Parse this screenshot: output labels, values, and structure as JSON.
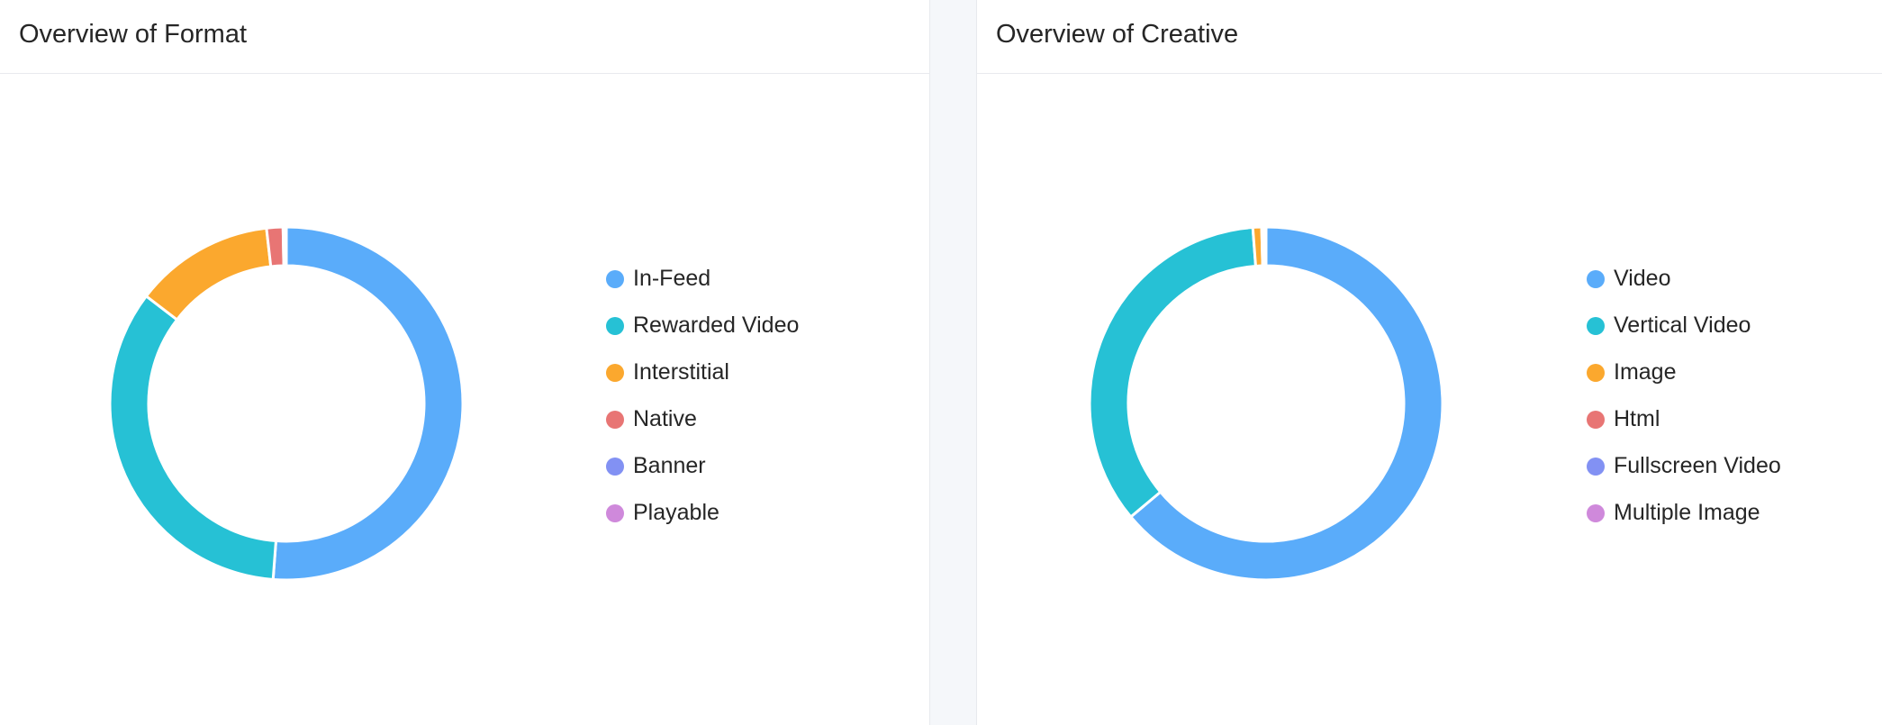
{
  "panels": {
    "format": {
      "title": "Overview of Format"
    },
    "creative": {
      "title": "Overview of Creative"
    }
  },
  "chart_data": [
    {
      "type": "pie",
      "title": "Overview of Format",
      "donut": true,
      "legend_position": "right",
      "categories": [
        "In-Feed",
        "Rewarded Video",
        "Interstitial",
        "Native",
        "Banner",
        "Playable"
      ],
      "values": [
        51.2,
        34.2,
        12.8,
        1.5,
        0.2,
        0.1
      ],
      "colors": [
        "#5aacfa",
        "#26c1d5",
        "#fba82e",
        "#e87574",
        "#8291f3",
        "#cf89db"
      ]
    },
    {
      "type": "pie",
      "title": "Overview of Creative",
      "donut": true,
      "legend_position": "right",
      "categories": [
        "Video",
        "Vertical Video",
        "Image",
        "Html",
        "Fullscreen Video",
        "Multiple Image"
      ],
      "values": [
        63.9,
        34.9,
        0.8,
        0.2,
        0.1,
        0.1
      ],
      "colors": [
        "#5aacfa",
        "#26c1d5",
        "#fba82e",
        "#e87574",
        "#8291f3",
        "#cf89db"
      ]
    }
  ]
}
